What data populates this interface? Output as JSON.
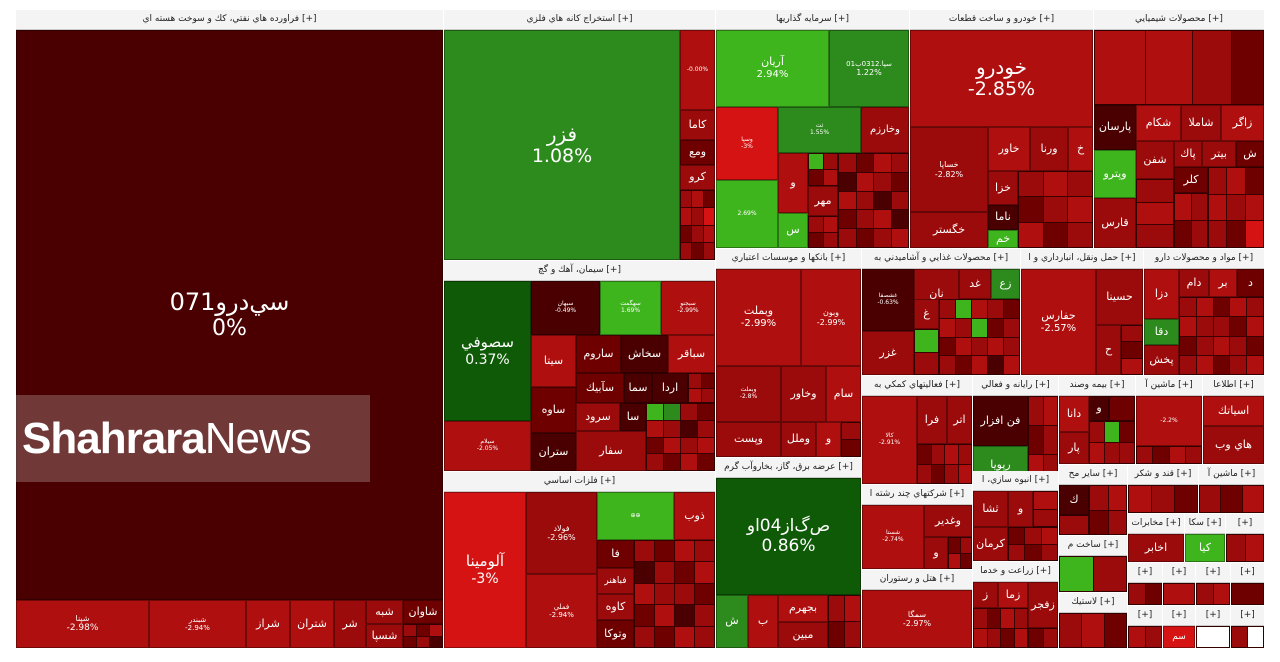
{
  "colors": {
    "dark": "#4a0000",
    "maroon": "#6e0000",
    "red": "#9c0b0b",
    "red2": "#b00f0f",
    "brightred": "#d61313",
    "green": "#2c8b1c",
    "brightgreen": "#3fb51d",
    "darkgreen": "#0f5a07"
  },
  "sectors": {
    "oil": {
      "header": "فراورده هاي نفتي، كك و سوخت هسته اي [+]",
      "main": {
        "name": "سي‌درو071",
        "pct": "0%"
      },
      "row": [
        {
          "name": "شپنا",
          "pct": "-2.98%"
        },
        {
          "name": "شبندر",
          "pct": "-2.94%"
        },
        {
          "name": "شراز",
          "pct": ""
        },
        {
          "name": "شتران",
          "pct": ""
        },
        {
          "name": "شر",
          "pct": ""
        },
        {
          "name": "شبه",
          "pct": ""
        },
        {
          "name": "شسپا",
          "pct": ""
        },
        {
          "name": "شاوان",
          "pct": ""
        }
      ]
    },
    "mining": {
      "header": "استخراج كانه هاي فلزي [+]",
      "main": {
        "name": "فزر",
        "pct": "1.08%"
      },
      "side": [
        {
          "name": "",
          "pct": "-0.00%"
        },
        {
          "name": "كاما",
          "pct": ""
        },
        {
          "name": "ومع",
          "pct": ""
        },
        {
          "name": "كرو",
          "pct": ""
        }
      ]
    },
    "cement": {
      "header": "سيمان، آهك و گچ [+]",
      "main": {
        "name": "سصوفي",
        "pct": "0.37%"
      },
      "low": {
        "name": "سيلام",
        "pct": "-2.05%"
      },
      "tiles": [
        {
          "name": "سبهان",
          "pct": "-0.49%"
        },
        {
          "name": "سهگمت",
          "pct": "1.69%"
        },
        {
          "name": "سبجنو",
          "pct": "-2.99%"
        },
        {
          "name": "سيتا",
          "pct": ""
        },
        {
          "name": "ساروم",
          "pct": ""
        },
        {
          "name": "سخاش",
          "pct": ""
        },
        {
          "name": "سباقر",
          "pct": ""
        },
        {
          "name": "ساوه",
          "pct": ""
        },
        {
          "name": "سآبيك",
          "pct": ""
        },
        {
          "name": "سما",
          "pct": ""
        },
        {
          "name": "اردا",
          "pct": ""
        },
        {
          "name": "سرود",
          "pct": ""
        },
        {
          "name": "سا",
          "pct": ""
        },
        {
          "name": "ستران",
          "pct": ""
        },
        {
          "name": "سفار",
          "pct": ""
        }
      ]
    },
    "metals": {
      "header": "فلزات اساسي [+]",
      "main": {
        "name": "آلومينا",
        "pct": "-3%"
      },
      "tiles": [
        {
          "name": "فولاد",
          "pct": "-2.96%"
        },
        {
          "name": "فملي",
          "pct": "-2.94%"
        },
        {
          "name": "ذوب",
          "pct": ""
        },
        {
          "name": "فا",
          "pct": ""
        },
        {
          "name": "فباهنر",
          "pct": ""
        },
        {
          "name": "كاوه",
          "pct": ""
        },
        {
          "name": "وتوكا",
          "pct": ""
        }
      ]
    },
    "invest": {
      "header": "سرمايه گذاريها [+]",
      "tiles": [
        {
          "name": "آريان",
          "pct": "2.94%"
        },
        {
          "name": "سپا.0312ب01",
          "pct": "1.22%"
        },
        {
          "name": "وسپا",
          "pct": "-3%"
        },
        {
          "name": "ثت",
          "pct": "1.55%"
        },
        {
          "name": "وخارزم",
          "pct": ""
        },
        {
          "name": "و",
          "pct": ""
        },
        {
          "name": "مهر",
          "pct": ""
        },
        {
          "name": "س",
          "pct": ""
        },
        {
          "name": "",
          "pct": "2.69%"
        }
      ]
    },
    "auto": {
      "header": "خودرو و ساخت قطعات [+]",
      "main": {
        "name": "خودرو",
        "pct": "-2.85%"
      },
      "tiles": [
        {
          "name": "خساپا",
          "pct": "-2.82%"
        },
        {
          "name": "خاور",
          "pct": ""
        },
        {
          "name": "ورنا",
          "pct": ""
        },
        {
          "name": "خ",
          "pct": ""
        },
        {
          "name": "خزا",
          "pct": ""
        },
        {
          "name": "خگستر",
          "pct": ""
        },
        {
          "name": "ناما",
          "pct": ""
        },
        {
          "name": "خم",
          "pct": ""
        }
      ]
    },
    "chem": {
      "header": "محصولات شيميايي [+]",
      "tiles": [
        {
          "name": "پارسان",
          "pct": ""
        },
        {
          "name": "شكام",
          "pct": ""
        },
        {
          "name": "شاملا",
          "pct": ""
        },
        {
          "name": "زاگر",
          "pct": ""
        },
        {
          "name": "شفن",
          "pct": ""
        },
        {
          "name": "بيتر",
          "pct": ""
        },
        {
          "name": "پاك",
          "pct": ""
        },
        {
          "name": "ش",
          "pct": ""
        },
        {
          "name": "وپترو",
          "pct": ""
        },
        {
          "name": "كلر",
          "pct": ""
        },
        {
          "name": "قارس",
          "pct": ""
        }
      ]
    },
    "banks": {
      "header": "بانكها و موسسات اعتباري [+]",
      "tiles": [
        {
          "name": "وبملت",
          "pct": "-2.99%"
        },
        {
          "name": "وبون",
          "pct": "-2.99%"
        },
        {
          "name": "وخاور",
          "pct": ""
        },
        {
          "name": "سام",
          "pct": ""
        },
        {
          "name": "وپست",
          "pct": ""
        },
        {
          "name": "وملل",
          "pct": ""
        },
        {
          "name": "و",
          "pct": ""
        },
        {
          "name": "وبملت",
          "pct": "-2.8%"
        }
      ]
    },
    "food": {
      "header": "محصولات غذايي و آشاميدني به [+]",
      "tiles": [
        {
          "name": "غشصفا",
          "pct": "-0.63%"
        },
        {
          "name": "نان",
          "pct": ""
        },
        {
          "name": "غد",
          "pct": ""
        },
        {
          "name": "زع",
          "pct": ""
        },
        {
          "name": "غ",
          "pct": ""
        },
        {
          "name": "غزر",
          "pct": ""
        }
      ]
    },
    "transport": {
      "header": "حمل ونقل، انبارداري و ا [+]",
      "main": {
        "name": "حفارس",
        "pct": "-2.57%"
      }
    },
    "pharma": {
      "header": "مواد و محصولات دارو [+]",
      "tiles": [
        {
          "name": "حسينا",
          "pct": ""
        },
        {
          "name": "دزا",
          "pct": ""
        },
        {
          "name": "دام",
          "pct": ""
        },
        {
          "name": "بر",
          "pct": ""
        },
        {
          "name": "د",
          "pct": ""
        },
        {
          "name": "دقا",
          "pct": ""
        },
        {
          "name": "پخش",
          "pct": ""
        },
        {
          "name": "ح",
          "pct": ""
        }
      ]
    },
    "support": {
      "header": "فعاليتهاي كمكي به [+]",
      "tiles": [
        {
          "name": "كالا",
          "pct": "-2.91%"
        },
        {
          "name": "فرا",
          "pct": ""
        },
        {
          "name": "اتر",
          "pct": ""
        }
      ]
    },
    "it": {
      "header": "رايانه و فعالي [+]",
      "tiles": [
        {
          "name": "فن افزار",
          "pct": ""
        },
        {
          "name": "رپويا",
          "pct": ""
        }
      ]
    },
    "insurance": {
      "header": "بيمه وصند [+]",
      "tiles": [
        {
          "name": "دانا",
          "pct": ""
        },
        {
          "name": "پار",
          "pct": ""
        },
        {
          "name": "و",
          "pct": ""
        }
      ]
    },
    "machine": {
      "header": "ماشين آ [+]",
      "tiles": [
        {
          "name": "",
          "pct": "-2.2%"
        }
      ]
    },
    "telecom": {
      "header": "اطلاعا [+]",
      "tiles": [
        {
          "name": "اسياتك",
          "pct": ""
        },
        {
          "name": "هاي وب",
          "pct": ""
        }
      ]
    },
    "utility": {
      "header": "عرضه برق، گاز، بخاروآب گرم [+]",
      "main": {
        "name": "ص‌گ‌از04او",
        "pct": "0.86%"
      },
      "tiles": [
        {
          "name": "بجهرم",
          "pct": ""
        },
        {
          "name": "مبين",
          "pct": ""
        },
        {
          "name": "ب",
          "pct": ""
        },
        {
          "name": "ش",
          "pct": ""
        }
      ]
    },
    "multi": {
      "header": "شركتهاي چند رشته ا [+]",
      "tiles": [
        {
          "name": "شستا",
          "pct": "-2.74%"
        },
        {
          "name": "وغدير",
          "pct": ""
        },
        {
          "name": "و",
          "pct": ""
        }
      ]
    },
    "mass": {
      "header": "انبوه سازي، ا [+]",
      "tiles": [
        {
          "name": "ثشا",
          "pct": ""
        },
        {
          "name": "و",
          "pct": ""
        },
        {
          "name": "كرمان",
          "pct": ""
        }
      ]
    },
    "farm": {
      "header": "زراعت و خدما [+]",
      "tiles": [
        {
          "name": "زما",
          "pct": ""
        },
        {
          "name": "زفجر",
          "pct": ""
        },
        {
          "name": "ز",
          "pct": ""
        }
      ]
    },
    "hotel": {
      "header": "هتل و رستوران [+]",
      "tiles": [
        {
          "name": "سمگا",
          "pct": "-2.97%"
        }
      ]
    },
    "plastic": {
      "header": "لاستيك [+]"
    },
    "other": {
      "header": "ساير مح [+]",
      "tiles": [
        {
          "name": "ك",
          "pct": ""
        }
      ]
    },
    "sugar": {
      "header": "قند و شكر [+]"
    },
    "machine2": {
      "header": "ماشين آ [+]"
    },
    "comm": {
      "header": "مخابرات [+]",
      "tiles": [
        {
          "name": "اخابر",
          "pct": ""
        }
      ]
    },
    "ska": {
      "header": "سكا [+]",
      "tiles": [
        {
          "name": "كيا",
          "pct": ""
        }
      ]
    },
    "build": {
      "header": "ساخت م [+]"
    },
    "small": {
      "labels": [
        "[+]",
        "[+]",
        "[+]",
        "[+]",
        "[+]",
        "[+]",
        "[+]",
        "[+]",
        "[+]"
      ],
      "stock": "سم"
    }
  },
  "watermark": {
    "strong": "Shahrara",
    "light": "News"
  }
}
